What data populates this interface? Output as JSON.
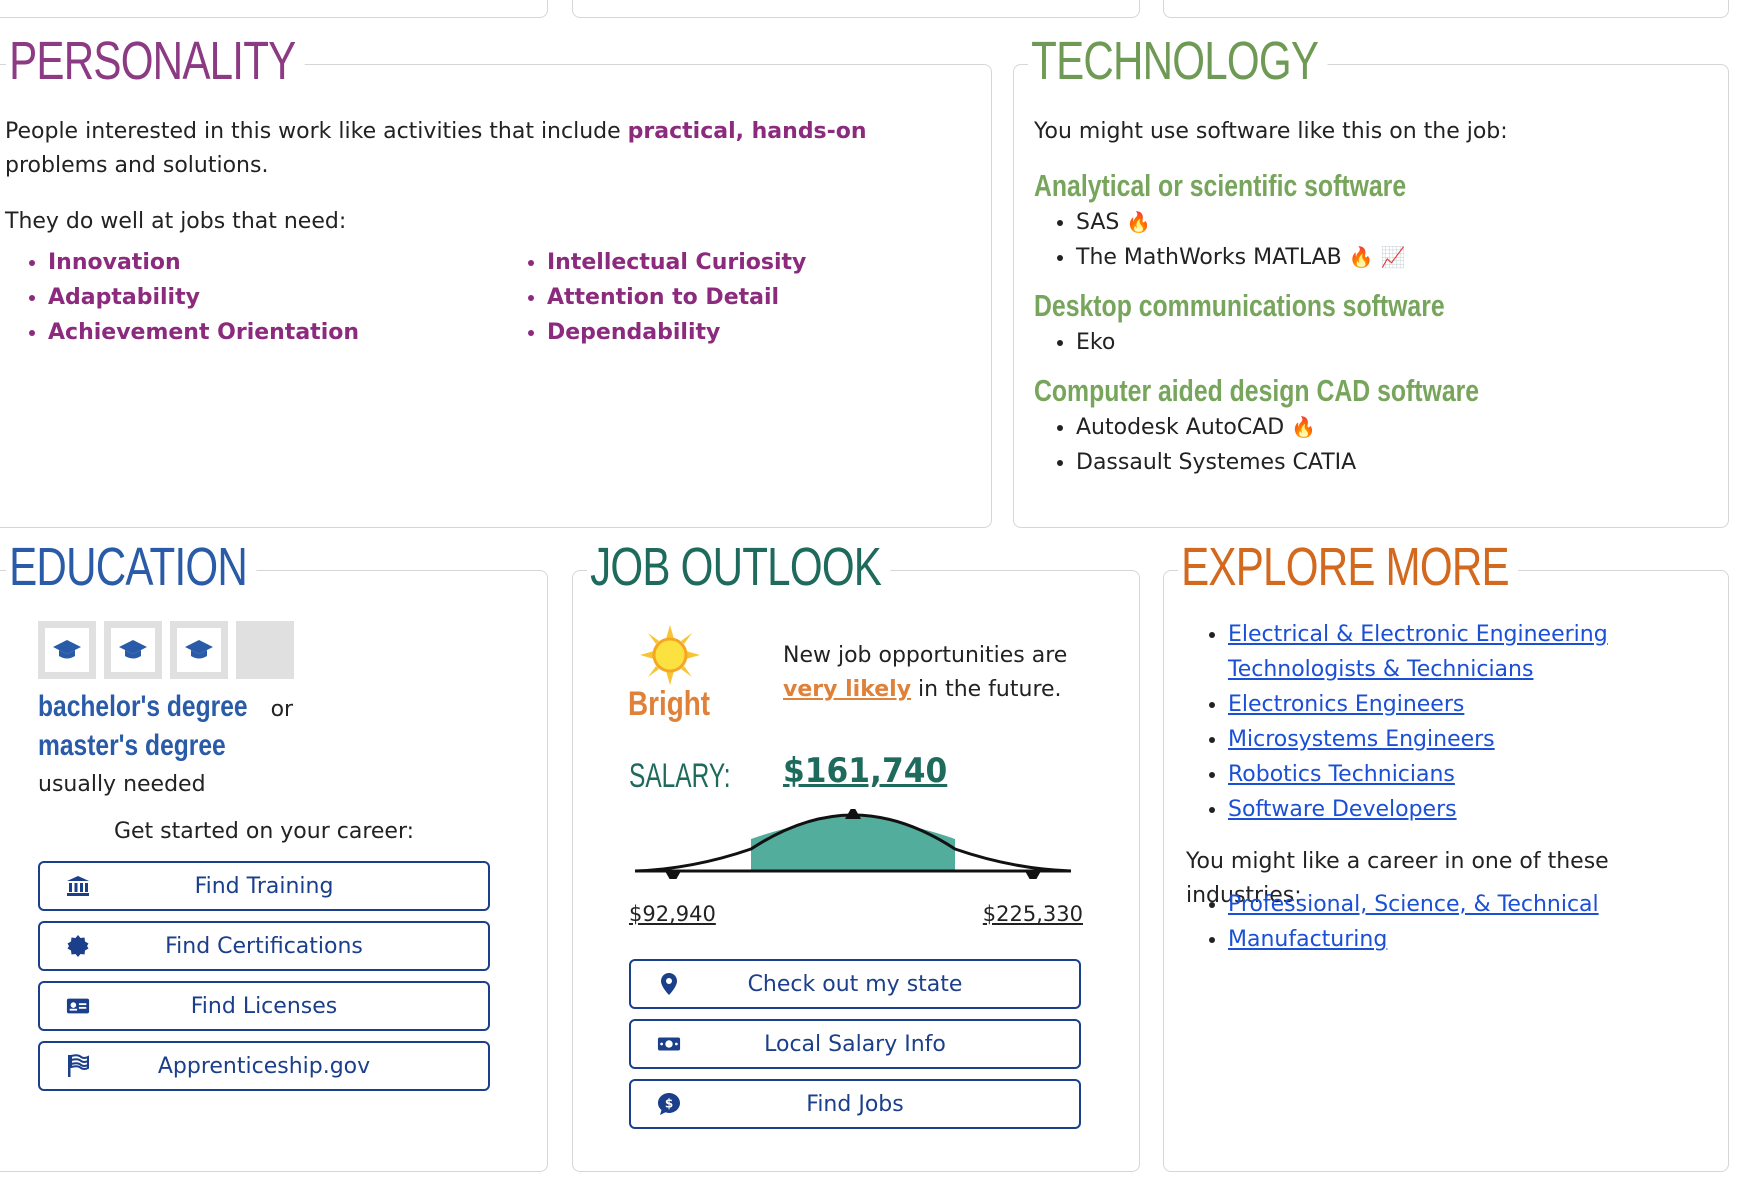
{
  "personality": {
    "title": "PERSONALITY",
    "intro_pre": "People interested in this work like activities that include ",
    "intro_highlight": "practical, hands-on",
    "intro_post": " problems and solutions.",
    "needs_label": "They do well at jobs that need:",
    "traits_col1": [
      "Innovation",
      "Adaptability",
      "Achievement Orientation"
    ],
    "traits_col2": [
      "Intellectual Curiosity",
      "Attention to Detail",
      "Dependability"
    ]
  },
  "technology": {
    "title": "TECHNOLOGY",
    "intro": "You might use software like this on the job:",
    "categories": [
      {
        "name": "Analytical or scientific software",
        "items": [
          "SAS",
          "The MathWorks MATLAB"
        ]
      },
      {
        "name": "Desktop communications software",
        "items": [
          "Eko"
        ]
      },
      {
        "name": "Computer aided design CAD software",
        "items": [
          "Autodesk AutoCAD",
          "Dassault Systemes CATIA"
        ]
      }
    ],
    "icons": {
      "hot": "fire-icon",
      "in_demand": "trending-icon"
    }
  },
  "education": {
    "title": "EDUCATION",
    "degree1": "bachelor's degree",
    "or_text": "or",
    "degree2": "master's degree",
    "needed": "usually needed",
    "levels_filled": 3,
    "levels_total": 4,
    "get_started": "Get started on your career:",
    "buttons": {
      "training": "Find Training",
      "certifications": "Find Certifications",
      "licenses": "Find Licenses",
      "apprenticeship": "Apprenticeship.gov"
    }
  },
  "outlook": {
    "title": "JOB OUTLOOK",
    "rating": "Bright",
    "text_pre": "New job opportunities are ",
    "text_link": "very likely",
    "text_post": " in the future.",
    "salary_label": "SALARY:",
    "salary_median": "$161,740",
    "salary_low": "$92,940",
    "salary_high": "$225,330",
    "buttons": {
      "state": "Check out my state",
      "local_salary": "Local Salary Info",
      "jobs": "Find Jobs"
    }
  },
  "explore": {
    "title": "EXPLORE MORE",
    "careers": [
      "Electrical & Electronic Engineering Technologists & Technicians",
      "Electronics Engineers",
      "Microsystems Engineers",
      "Robotics Technicians",
      "Software Developers"
    ],
    "industries_label": "You might like a career in one of these industries:",
    "industries": [
      "Professional, Science, & Technical",
      "Manufacturing"
    ]
  },
  "colors": {
    "personality": "#8c3a83",
    "technology": "#6f9a55",
    "education": "#2a5ba8",
    "outlook": "#1e6a5c",
    "explore": "#d2691e",
    "salary_fill": "#52ad9c",
    "link": "#1a4fd6"
  }
}
